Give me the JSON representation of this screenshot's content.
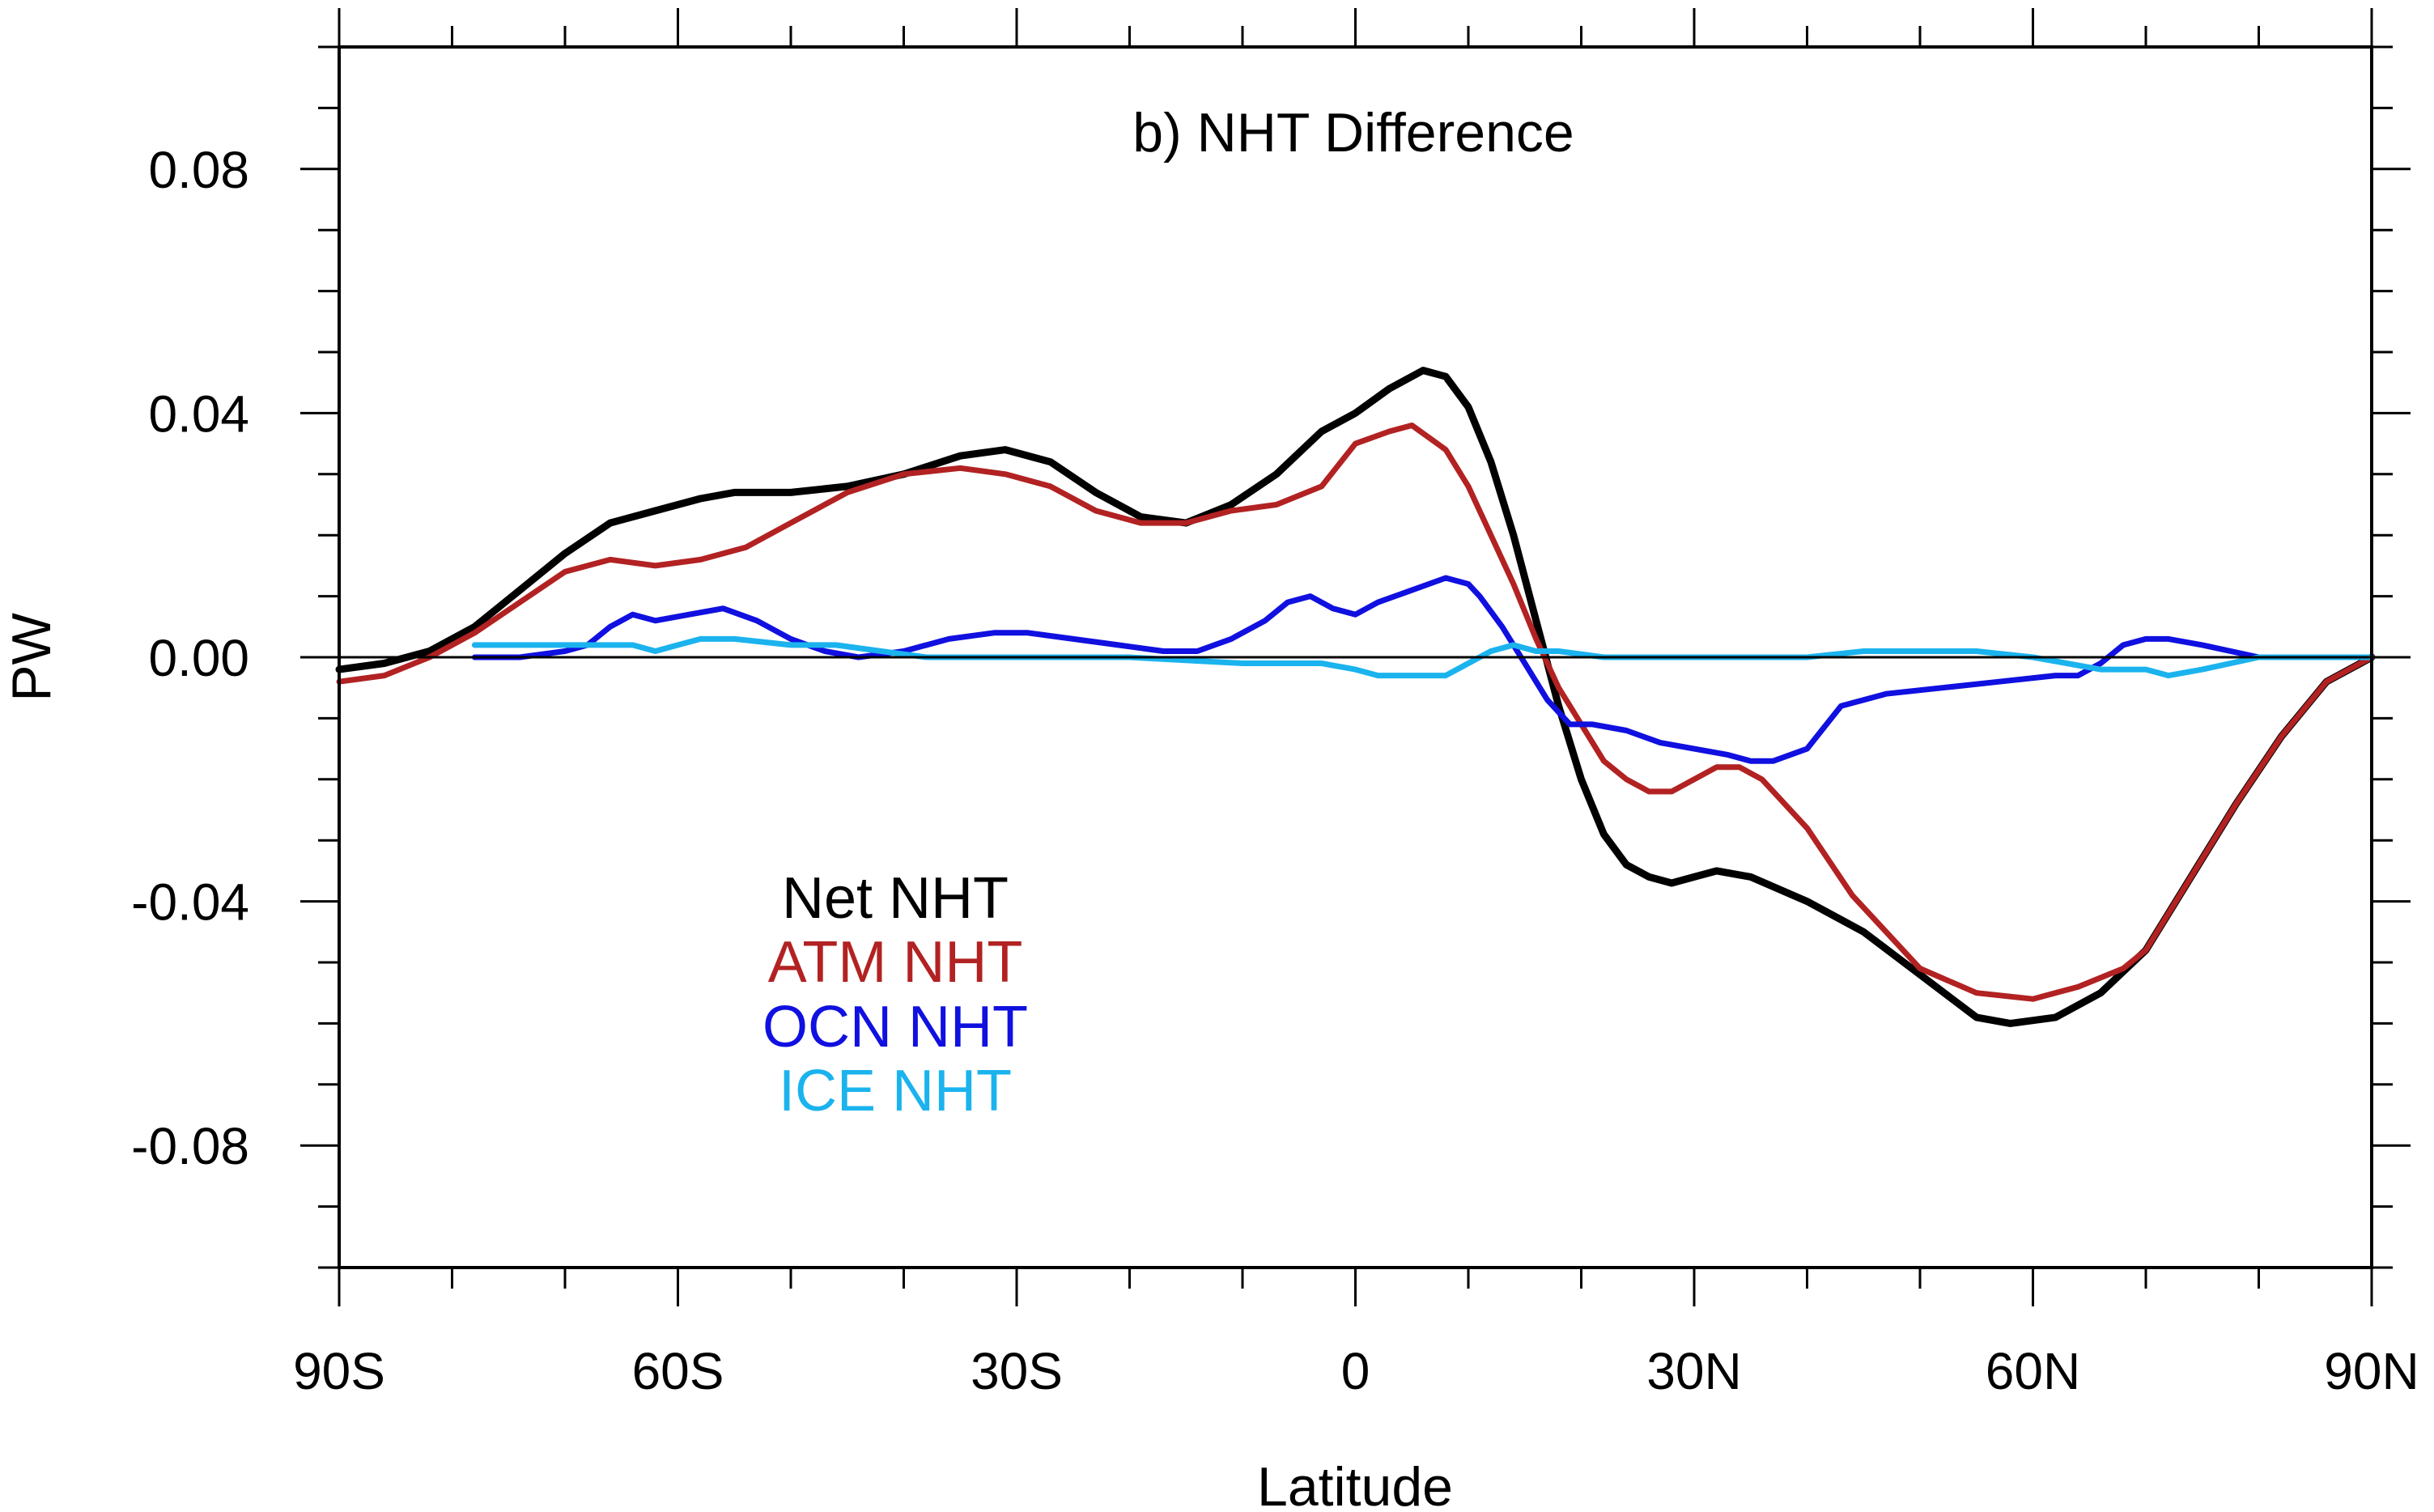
{
  "chart_data": {
    "type": "line",
    "title": "b) NHT Difference",
    "xlabel": "Latitude",
    "ylabel": "PW",
    "xlim": [
      -90,
      90
    ],
    "ylim": [
      -0.1,
      0.1
    ],
    "xticks": [
      {
        "value": -90,
        "label": "90S"
      },
      {
        "value": -60,
        "label": "60S"
      },
      {
        "value": -30,
        "label": "30S"
      },
      {
        "value": 0,
        "label": "0"
      },
      {
        "value": 30,
        "label": "30N"
      },
      {
        "value": 60,
        "label": "60N"
      },
      {
        "value": 90,
        "label": "90N"
      }
    ],
    "yticks": [
      {
        "value": 0.08,
        "label": "0.08"
      },
      {
        "value": 0.04,
        "label": "0.04"
      },
      {
        "value": 0.0,
        "label": "0.00"
      },
      {
        "value": -0.04,
        "label": "-0.04"
      },
      {
        "value": -0.08,
        "label": "-0.08"
      }
    ],
    "zero_line": true,
    "legend_placement": "lower-left inside plot",
    "series": [
      {
        "name": "Net NHT",
        "color": "#000000",
        "x": [
          -90,
          -86,
          -82,
          -78,
          -74,
          -70,
          -66,
          -62,
          -58,
          -55,
          -50,
          -45,
          -40,
          -35,
          -31,
          -27,
          -23,
          -19,
          -15,
          -11,
          -7,
          -3,
          0,
          3,
          6,
          8,
          10,
          12,
          14,
          16,
          18,
          20,
          22,
          24,
          26,
          28,
          30,
          32,
          35,
          40,
          45,
          50,
          55,
          58,
          62,
          66,
          70,
          74,
          78,
          82,
          86,
          90
        ],
        "values": [
          -0.002,
          -0.001,
          0.001,
          0.005,
          0.011,
          0.017,
          0.022,
          0.024,
          0.026,
          0.027,
          0.027,
          0.028,
          0.03,
          0.033,
          0.034,
          0.032,
          0.027,
          0.023,
          0.022,
          0.025,
          0.03,
          0.037,
          0.04,
          0.044,
          0.047,
          0.046,
          0.041,
          0.032,
          0.02,
          0.006,
          -0.008,
          -0.02,
          -0.029,
          -0.034,
          -0.036,
          -0.037,
          -0.036,
          -0.035,
          -0.036,
          -0.04,
          -0.045,
          -0.052,
          -0.059,
          -0.06,
          -0.059,
          -0.055,
          -0.048,
          -0.036,
          -0.024,
          -0.013,
          -0.004,
          0.0
        ]
      },
      {
        "name": "ATM NHT",
        "color": "#b22222",
        "x": [
          -90,
          -86,
          -82,
          -78,
          -74,
          -70,
          -66,
          -62,
          -58,
          -54,
          -50,
          -45,
          -40,
          -35,
          -31,
          -27,
          -23,
          -19,
          -15,
          -11,
          -7,
          -3,
          0,
          3,
          5,
          8,
          10,
          12,
          14,
          16,
          18,
          20,
          22,
          24,
          26,
          28,
          30,
          32,
          34,
          36,
          40,
          44,
          50,
          55,
          60,
          64,
          68,
          70,
          74,
          78,
          82,
          86,
          90
        ],
        "values": [
          -0.004,
          -0.003,
          0.0,
          0.004,
          0.009,
          0.014,
          0.016,
          0.015,
          0.016,
          0.018,
          0.022,
          0.027,
          0.03,
          0.031,
          0.03,
          0.028,
          0.024,
          0.022,
          0.022,
          0.024,
          0.025,
          0.028,
          0.035,
          0.037,
          0.038,
          0.034,
          0.028,
          0.02,
          0.012,
          0.003,
          -0.005,
          -0.011,
          -0.017,
          -0.02,
          -0.022,
          -0.022,
          -0.02,
          -0.018,
          -0.018,
          -0.02,
          -0.028,
          -0.039,
          -0.051,
          -0.055,
          -0.056,
          -0.054,
          -0.051,
          -0.048,
          -0.036,
          -0.024,
          -0.013,
          -0.004,
          0.0
        ]
      },
      {
        "name": "OCN NHT",
        "color": "#1010e0",
        "x": [
          -78,
          -74,
          -70,
          -68,
          -66,
          -64,
          -62,
          -59,
          -56,
          -53,
          -50,
          -47,
          -44,
          -40,
          -36,
          -32,
          -29,
          -25,
          -21,
          -17,
          -14,
          -11,
          -8,
          -6,
          -4,
          -2,
          0,
          2,
          5,
          8,
          10,
          11,
          13,
          15,
          17,
          19,
          21,
          24,
          27,
          30,
          33,
          35,
          37,
          40,
          43,
          47,
          52,
          57,
          62,
          64,
          66,
          68,
          70,
          72,
          75,
          80,
          85,
          90
        ],
        "values": [
          0.0,
          0.0,
          0.001,
          0.002,
          0.005,
          0.007,
          0.006,
          0.007,
          0.008,
          0.006,
          0.003,
          0.001,
          0.0,
          0.001,
          0.003,
          0.004,
          0.004,
          0.003,
          0.002,
          0.001,
          0.001,
          0.003,
          0.006,
          0.009,
          0.01,
          0.008,
          0.007,
          0.009,
          0.011,
          0.013,
          0.012,
          0.01,
          0.005,
          -0.001,
          -0.007,
          -0.011,
          -0.011,
          -0.012,
          -0.014,
          -0.015,
          -0.016,
          -0.017,
          -0.017,
          -0.015,
          -0.008,
          -0.006,
          -0.005,
          -0.004,
          -0.003,
          -0.003,
          -0.001,
          0.002,
          0.003,
          0.003,
          0.002,
          0.0,
          0.0,
          0.0
        ]
      },
      {
        "name": "ICE NHT",
        "color": "#1bb3ee",
        "x": [
          -78,
          -74,
          -70,
          -66,
          -64,
          -62,
          -60,
          -58,
          -55,
          -50,
          -46,
          -42,
          -38,
          -34,
          -30,
          -20,
          -10,
          -6,
          -3,
          0,
          2,
          5,
          8,
          10,
          12,
          14,
          16,
          18,
          22,
          30,
          35,
          40,
          45,
          50,
          55,
          60,
          63,
          66,
          70,
          72,
          75,
          80,
          85,
          90
        ],
        "values": [
          0.002,
          0.002,
          0.002,
          0.002,
          0.002,
          0.001,
          0.002,
          0.003,
          0.003,
          0.002,
          0.002,
          0.001,
          0.0,
          0.0,
          0.0,
          0.0,
          -0.001,
          -0.001,
          -0.001,
          -0.002,
          -0.003,
          -0.003,
          -0.003,
          -0.001,
          0.001,
          0.002,
          0.001,
          0.001,
          0.0,
          0.0,
          0.0,
          0.0,
          0.001,
          0.001,
          0.001,
          0.0,
          -0.001,
          -0.002,
          -0.002,
          -0.003,
          -0.002,
          0.0,
          0.0,
          0.0
        ]
      }
    ]
  }
}
